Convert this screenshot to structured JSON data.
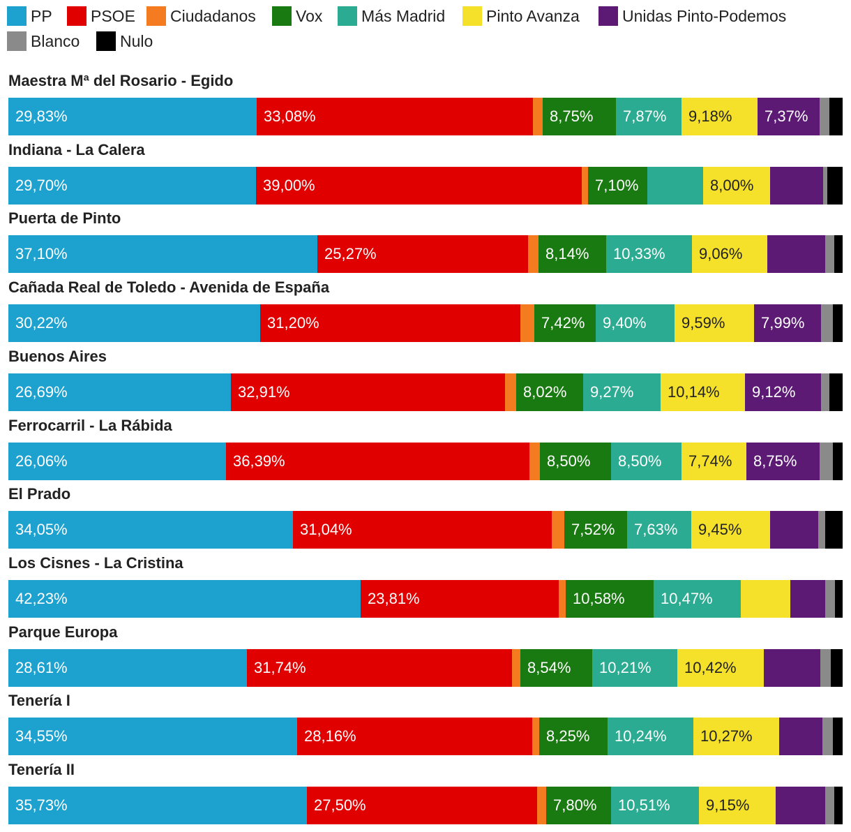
{
  "chart_data": {
    "type": "bar",
    "orientation": "horizontal",
    "stacked": true,
    "legend": [
      {
        "name": "PP",
        "color": "#1da1cf"
      },
      {
        "name": "PSOE",
        "color": "#e10000"
      },
      {
        "name": "Ciudadanos",
        "color": "#f47b20"
      },
      {
        "name": "Vox",
        "color": "#1a7a12"
      },
      {
        "name": "Más Madrid",
        "color": "#2bab91"
      },
      {
        "name": "Pinto Avanza",
        "color": "#f5e12a"
      },
      {
        "name": "Unidas Pinto-Podemos",
        "color": "#5c1a75"
      },
      {
        "name": "Blanco",
        "color": "#8a8a8a"
      },
      {
        "name": "Nulo",
        "color": "#000000"
      }
    ],
    "label_colors": {
      "PP": "#ffffff",
      "PSOE": "#ffffff",
      "Ciudadanos": "#ffffff",
      "Vox": "#ffffff",
      "Más Madrid": "#ffffff",
      "Pinto Avanza": "#222222",
      "Unidas Pinto-Podemos": "#ffffff",
      "Blanco": "#ffffff",
      "Nulo": "#ffffff"
    },
    "categories": [
      "Maestra Mª del Rosario - Egido",
      "Indiana - La Calera",
      "Puerta de Pinto",
      "Cañada Real de Toledo - Avenida de España",
      "Buenos Aires",
      "Ferrocarril - La Rábida",
      "El Prado",
      "Los Cisnes - La Cristina",
      "Parque Europa",
      "Tenería I",
      "Tenería II"
    ],
    "series": [
      {
        "name": "PP",
        "values": [
          29.83,
          29.7,
          37.1,
          30.22,
          26.69,
          26.06,
          34.05,
          42.23,
          28.61,
          34.55,
          35.73
        ],
        "labels": [
          "29,83%",
          "29,70%",
          "37,10%",
          "30,22%",
          "26,69%",
          "26,06%",
          "34,05%",
          "42,23%",
          "28,61%",
          "34,55%",
          "35,73%"
        ]
      },
      {
        "name": "PSOE",
        "values": [
          33.08,
          39.0,
          25.27,
          31.2,
          32.91,
          36.39,
          31.04,
          23.81,
          31.74,
          28.16,
          27.5
        ],
        "labels": [
          "33,08%",
          "39,00%",
          "25,27%",
          "31,20%",
          "32,91%",
          "36,39%",
          "31,04%",
          "23,81%",
          "31,74%",
          "28,16%",
          "27,50%"
        ]
      },
      {
        "name": "Ciudadanos",
        "values": [
          1.2,
          0.8,
          1.2,
          1.6,
          1.3,
          1.3,
          1.5,
          0.8,
          1.0,
          0.8,
          1.1
        ],
        "labels": [
          "",
          "",
          "",
          "",
          "",
          "",
          "",
          "",
          "",
          "",
          ""
        ]
      },
      {
        "name": "Vox",
        "values": [
          8.75,
          7.1,
          8.14,
          7.42,
          8.02,
          8.5,
          7.52,
          10.58,
          8.54,
          8.25,
          7.8
        ],
        "labels": [
          "8,75%",
          "7,10%",
          "8,14%",
          "7,42%",
          "8,02%",
          "8,50%",
          "7,52%",
          "10,58%",
          "8,54%",
          "8,25%",
          "7,80%"
        ]
      },
      {
        "name": "Más Madrid",
        "values": [
          7.87,
          6.7,
          10.33,
          9.4,
          9.27,
          8.5,
          7.63,
          10.47,
          10.21,
          10.24,
          10.51
        ],
        "labels": [
          "7,87%",
          "",
          "10,33%",
          "9,40%",
          "9,27%",
          "8,50%",
          "7,63%",
          "10,47%",
          "10,21%",
          "10,24%",
          "10,51%"
        ]
      },
      {
        "name": "Pinto Avanza",
        "values": [
          9.18,
          8.0,
          9.06,
          9.59,
          10.14,
          7.74,
          9.45,
          5.9,
          10.42,
          10.27,
          9.15
        ],
        "labels": [
          "9,18%",
          "8,00%",
          "9,06%",
          "9,59%",
          "10,14%",
          "7,74%",
          "9,45%",
          "",
          "10,42%",
          "10,27%",
          "9,15%"
        ]
      },
      {
        "name": "Unidas Pinto-Podemos",
        "values": [
          7.37,
          6.4,
          6.9,
          7.99,
          9.12,
          8.75,
          5.8,
          4.2,
          6.7,
          5.2,
          5.9
        ],
        "labels": [
          "7,37%",
          "",
          "",
          "7,99%",
          "9,12%",
          "8,75%",
          "",
          "",
          "",
          "",
          ""
        ]
      },
      {
        "name": "Blanco",
        "values": [
          1.2,
          0.5,
          1.1,
          1.4,
          1.0,
          1.6,
          0.8,
          1.2,
          1.3,
          1.2,
          1.1
        ],
        "labels": [
          "",
          "",
          "",
          "",
          "",
          "",
          "",
          "",
          "",
          "",
          ""
        ]
      },
      {
        "name": "Nulo",
        "values": [
          1.6,
          1.8,
          1.0,
          1.2,
          1.6,
          1.2,
          2.1,
          0.9,
          1.4,
          1.2,
          1.0
        ],
        "labels": [
          "",
          "",
          "",
          "",
          "",
          "",
          "",
          "",
          "",
          "",
          ""
        ]
      }
    ],
    "value_format": "percent",
    "xlim": [
      0,
      100
    ],
    "axes_visible": false,
    "grid": false,
    "legend_position": "top-left"
  }
}
